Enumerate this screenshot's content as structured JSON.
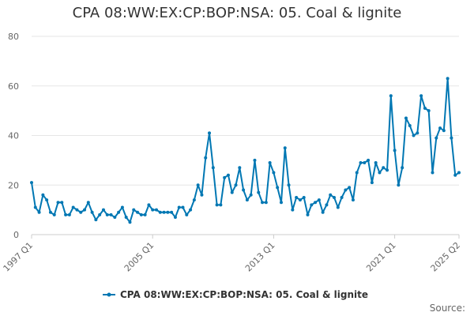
{
  "chart_data": {
    "type": "line",
    "title": "CPA 08:WW:EX:CP:BOP:NSA: 05. Coal & lignite",
    "series_name": "CPA 08:WW:EX:CP:BOP:NSA: 05. Coal & lignite",
    "source_label": "Source:",
    "color": "#0077b3",
    "ylim": [
      0,
      80
    ],
    "y_ticks": [
      0,
      20,
      40,
      60,
      80
    ],
    "x_tick_labels": [
      "1997 Q1",
      "2005 Q1",
      "2013 Q1",
      "2021 Q1",
      "2025 Q2"
    ],
    "x_tick_index": [
      0,
      32,
      64,
      96,
      113
    ],
    "grid": true,
    "legend_position": "bottom-center",
    "values": [
      21,
      11,
      9,
      16,
      14,
      9,
      8,
      13,
      13,
      8,
      8,
      11,
      10,
      9,
      10,
      13,
      9,
      6,
      8,
      10,
      8,
      8,
      7,
      9,
      11,
      7,
      5,
      10,
      9,
      8,
      8,
      12,
      10,
      10,
      9,
      9,
      9,
      9,
      7,
      11,
      11,
      8,
      10,
      14,
      20,
      16,
      31,
      41,
      27,
      12,
      12,
      23,
      24,
      17,
      20,
      27,
      18,
      14,
      16,
      30,
      17,
      13,
      13,
      29,
      25,
      19,
      13,
      35,
      20,
      10,
      15,
      14,
      15,
      8,
      12,
      13,
      14,
      9,
      12,
      16,
      15,
      11,
      15,
      18,
      19,
      14,
      25,
      29,
      29,
      30,
      21,
      29,
      25,
      27,
      26,
      56,
      34,
      20,
      27,
      47,
      44,
      40,
      41,
      56,
      51,
      50,
      25,
      39,
      43,
      42,
      63,
      39,
      24,
      25
    ]
  }
}
